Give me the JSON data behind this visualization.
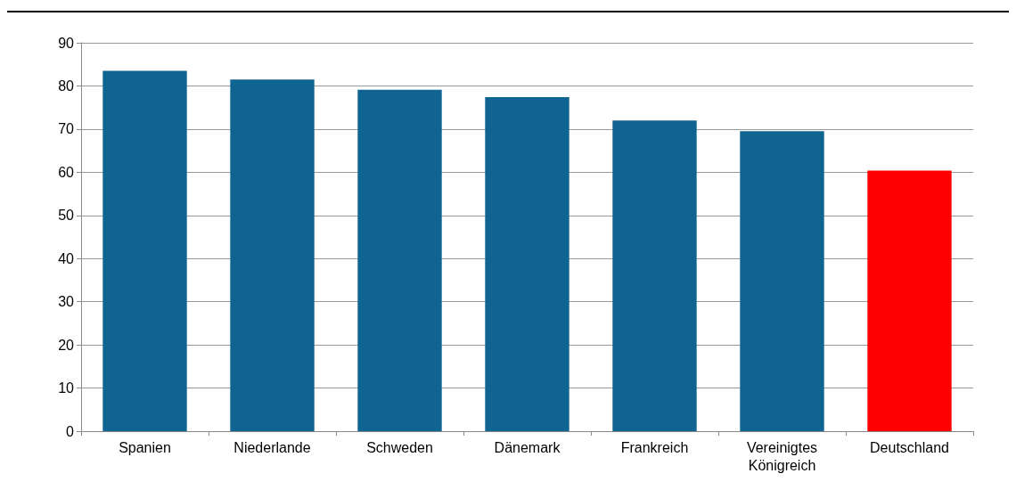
{
  "chart_data": {
    "type": "bar",
    "categories": [
      "Spanien",
      "Niederlande",
      "Schweden",
      "Dänemark",
      "Frankreich",
      "Vereinigtes\nKönigreich",
      "Deutschland"
    ],
    "values": [
      83.5,
      81.5,
      79.1,
      77.4,
      72.0,
      69.5,
      60.4
    ],
    "colors": [
      "#106491",
      "#106491",
      "#106491",
      "#106491",
      "#106491",
      "#106491",
      "#ff0000"
    ],
    "ylim": [
      0,
      90
    ],
    "yticks": [
      0,
      10,
      20,
      30,
      40,
      50,
      60,
      70,
      80,
      90
    ],
    "grid": "y"
  }
}
